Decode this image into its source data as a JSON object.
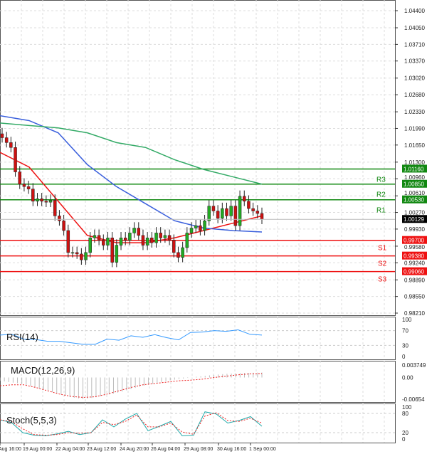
{
  "chart_data": {
    "type": "candlestick",
    "symbol_panel": "main",
    "price_axis": {
      "ticks": [
        "1.04400",
        "1.04050",
        "1.03710",
        "1.03370",
        "1.03020",
        "1.02680",
        "1.02330",
        "1.01990",
        "1.01650",
        "1.01300",
        "1.00960",
        "1.00610",
        "1.00270",
        "0.99930",
        "0.99580",
        "0.99240",
        "0.98890",
        "0.98550",
        "0.98210"
      ],
      "ylim": [
        0.9821,
        1.044
      ]
    },
    "current_price": "1.00129",
    "levels": [
      {
        "name": "R3",
        "value": "1.01160",
        "color": "#118811"
      },
      {
        "name": "R2",
        "value": "1.00850",
        "color": "#118811"
      },
      {
        "name": "R1",
        "value": "1.00530",
        "color": "#118811"
      },
      {
        "name": "S1",
        "value": "0.99700",
        "color": "#ee1111"
      },
      {
        "name": "S2",
        "value": "0.99380",
        "color": "#ee1111"
      },
      {
        "name": "S3",
        "value": "0.99060",
        "color": "#ee1111"
      }
    ],
    "closes": [
      1.018,
      1.017,
      1.016,
      1.011,
      1.0085,
      1.008,
      1.0075,
      1.005,
      1.0055,
      1.005,
      1.0048,
      1.0052,
      1.002,
      1.001,
      0.999,
      0.9945,
      0.9945,
      0.9942,
      0.993,
      0.9945,
      0.9975,
      0.998,
      0.997,
      0.996,
      0.9975,
      0.9925,
      0.996,
      0.9975,
      0.997,
      0.9985,
      0.9995,
      0.998,
      0.996,
      0.9975,
      0.9965,
      0.9985,
      0.9975,
      0.998,
      0.997,
      0.9945,
      0.9935,
      0.9955,
      0.9985,
      0.9995,
      1.0,
      0.999,
      1.001,
      1.004,
      1.003,
      1.0015,
      1.0035,
      1.002,
      1.004,
      1.0,
      1.006,
      1.005,
      1.0035,
      1.003,
      1.0025,
      1.0013
    ],
    "ma_series": [
      {
        "name": "fast-ma",
        "color": "#ee1111",
        "values": [
          1.015,
          1.012,
          1.005,
          0.998,
          0.9965,
          0.9965,
          0.9975,
          0.999,
          1.0005,
          1.002
        ]
      },
      {
        "name": "mid-ma",
        "color": "#3a5fdc",
        "values": [
          1.0225,
          1.0215,
          1.019,
          1.0125,
          1.008,
          1.0045,
          1.001,
          0.9995,
          0.999,
          0.9987
        ]
      },
      {
        "name": "slow-ma",
        "color": "#33aa66",
        "values": [
          1.021,
          1.0205,
          1.02,
          1.019,
          1.017,
          1.016,
          1.0135,
          1.0115,
          1.01,
          1.0085
        ]
      }
    ],
    "time_labels": [
      "Aug 16:00",
      "19 Aug 00:00",
      "22 Aug 04:00",
      "23 Aug 12:00",
      "24 Aug 20:00",
      "26 Aug 04:00",
      "29 Aug 08:00",
      "30 Aug 16:00",
      "1 Sep 00:00"
    ],
    "rsi": {
      "title": "RSI(14)",
      "ticks": [
        "100",
        "70",
        "30",
        "0"
      ],
      "values": [
        58,
        60,
        47,
        46,
        41,
        41,
        37,
        33,
        33,
        47,
        44,
        56,
        52,
        59,
        51,
        45,
        65,
        66,
        70,
        68,
        72,
        60,
        58
      ]
    },
    "macd": {
      "title": "MACD(12,26,9)",
      "ticks": [
        "0.003749",
        "0.00",
        "-0.00654"
      ],
      "histogram": [
        -0.001,
        -0.0015,
        -0.002,
        -0.003,
        -0.004,
        -0.005,
        -0.006,
        -0.0065,
        -0.006,
        -0.0052,
        -0.0045,
        -0.0035,
        -0.0025,
        -0.0018,
        -0.001,
        -0.0005,
        0,
        0.0004,
        0.0008,
        0.0011,
        0.0013,
        0.0014,
        0.0015
      ],
      "signal": [
        -0.0025,
        -0.0022,
        -0.0022,
        -0.003,
        -0.004,
        -0.005,
        -0.0057,
        -0.006,
        -0.0058,
        -0.005,
        -0.004,
        -0.003,
        -0.0022,
        -0.0018,
        -0.0014,
        -0.001,
        -0.0008,
        -0.0005,
        0,
        0.0004,
        0.0008,
        0.0011,
        0.0012
      ]
    },
    "stoch": {
      "title": "Stoch(5,5,3)",
      "ticks": [
        "100",
        "80",
        "20",
        "0"
      ],
      "main": [
        60,
        52,
        20,
        12,
        10,
        16,
        24,
        14,
        20,
        60,
        38,
        62,
        80,
        26,
        40,
        55,
        10,
        12,
        85,
        78,
        50,
        58,
        70,
        40
      ],
      "signal": [
        60,
        55,
        32,
        14,
        12,
        14,
        20,
        18,
        20,
        52,
        45,
        55,
        75,
        38,
        38,
        50,
        22,
        15,
        72,
        82,
        58,
        55,
        65,
        50
      ]
    }
  }
}
